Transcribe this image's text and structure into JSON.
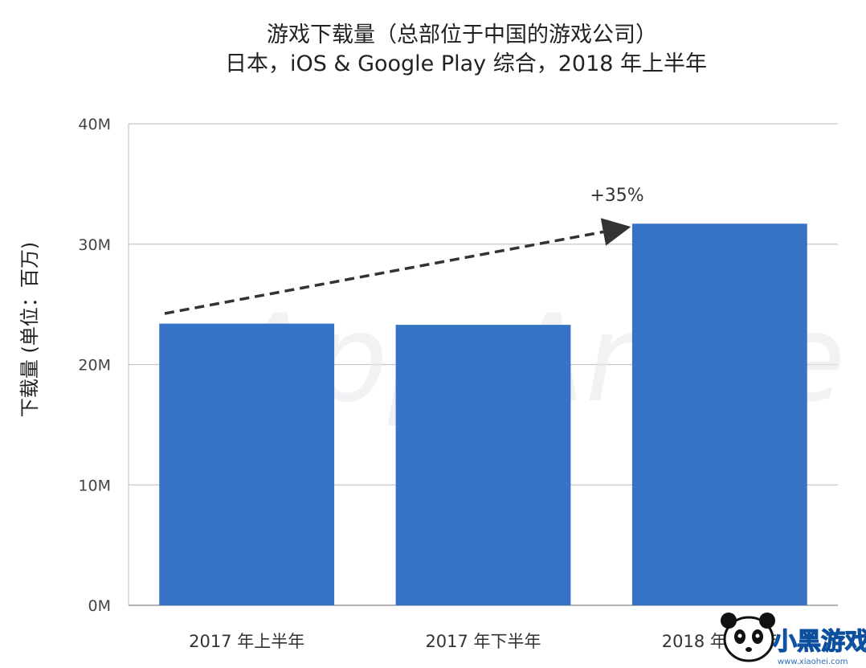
{
  "chart_data": {
    "type": "bar",
    "title": "游戏下载量（总部位于中国的游戏公司）",
    "subtitle": "日本，iOS & Google Play 综合，2018 年上半年",
    "ylabel": "下载量 (单位：百万)",
    "categories": [
      "2017 年上半年",
      "2017 年下半年",
      "2018 年上半年"
    ],
    "values": [
      23.4,
      23.3,
      31.7
    ],
    "ylim": [
      0,
      40
    ],
    "yticks": [
      0,
      10,
      20,
      30,
      40
    ],
    "ytick_labels": [
      "0M",
      "10M",
      "20M",
      "30M",
      "40M"
    ],
    "grid": true,
    "annotation": "+35%",
    "bar_color": "#3673c4"
  },
  "watermark": "App Annie",
  "logo": {
    "text": "小黑游戏",
    "url": "www.xiaohei.com"
  }
}
